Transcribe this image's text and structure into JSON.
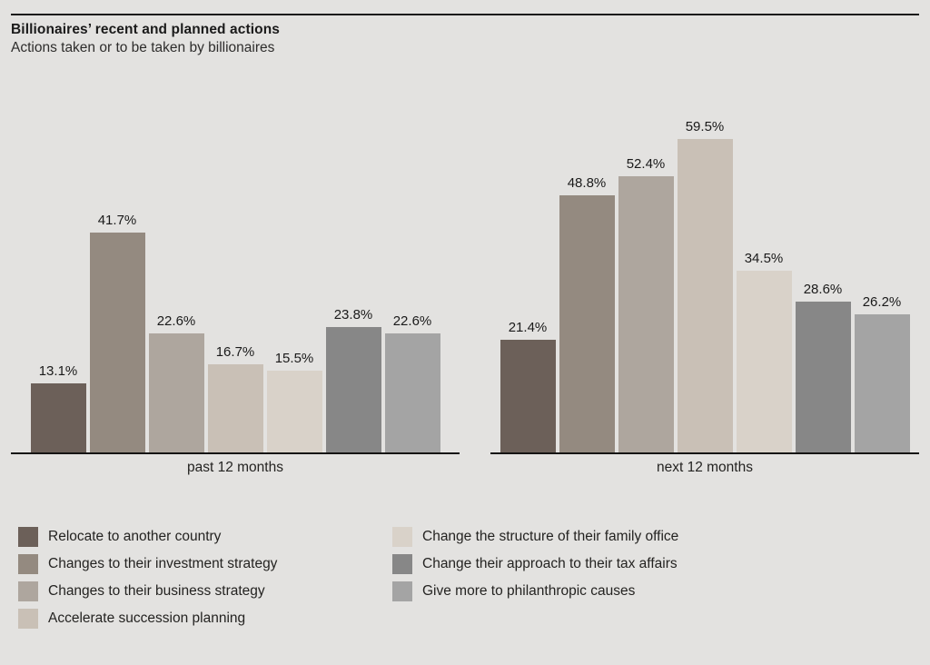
{
  "page": {
    "background": "#e3e2e0",
    "text_color": "#1a1a1a"
  },
  "header": {
    "title": "Billionaires’ recent and planned actions",
    "subtitle": "Actions taken or to be taken by billionaires"
  },
  "chart_data": {
    "type": "bar",
    "title": "Billionaires’ recent and planned actions",
    "subtitle": "Actions taken or to be taken by billionaires",
    "groups": [
      "past 12 months",
      "next 12 months"
    ],
    "series": [
      {
        "name": "Relocate to another country",
        "color": "#6c6059",
        "values": [
          13.1,
          21.4
        ]
      },
      {
        "name": "Changes to their investment strategy",
        "color": "#948a80",
        "values": [
          41.7,
          48.8
        ]
      },
      {
        "name": "Changes to their business strategy",
        "color": "#aea69e",
        "values": [
          22.6,
          52.4
        ]
      },
      {
        "name": "Accelerate succession planning",
        "color": "#c9c0b6",
        "values": [
          16.7,
          59.5
        ]
      },
      {
        "name": "Change the structure of their family office",
        "color": "#d9d2c9",
        "values": [
          15.5,
          34.5
        ]
      },
      {
        "name": "Change their approach to their tax affairs",
        "color": "#878787",
        "values": [
          23.8,
          28.6
        ]
      },
      {
        "name": "Give more to philanthropic causes",
        "color": "#a4a4a4",
        "values": [
          22.6,
          26.2
        ]
      }
    ],
    "value_suffix": "%",
    "value_decimals": 1,
    "ylim": [
      0,
      62
    ],
    "grid": false,
    "axis_line_color": "#151413",
    "legend_position": "bottom",
    "legend_columns": [
      4,
      3
    ]
  }
}
